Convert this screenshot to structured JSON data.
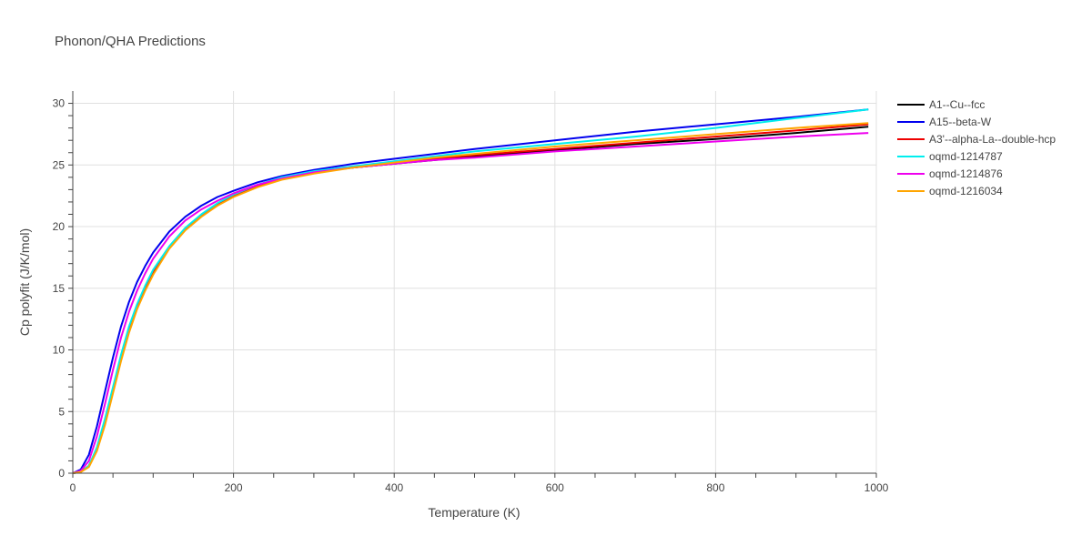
{
  "chart_data": {
    "type": "line",
    "title": "Phonon/QHA Predictions",
    "xlabel": "Temperature (K)",
    "ylabel": "Cp polyfit (J/K/mol)",
    "xlim": [
      0,
      1000
    ],
    "ylim": [
      0,
      31
    ],
    "x_ticks": [
      0,
      200,
      400,
      600,
      800,
      1000
    ],
    "y_ticks": [
      0,
      5,
      10,
      15,
      20,
      25,
      30
    ],
    "grid": true,
    "legend_position": "right",
    "x": [
      0,
      10,
      20,
      30,
      40,
      50,
      60,
      70,
      80,
      90,
      100,
      120,
      140,
      160,
      180,
      200,
      230,
      260,
      300,
      350,
      400,
      450,
      500,
      600,
      700,
      800,
      900,
      990
    ],
    "series": [
      {
        "name": "A1--Cu--fcc",
        "color": "#000000",
        "values": [
          0,
          0.1,
          0.6,
          2.0,
          4.2,
          6.8,
          9.4,
          11.7,
          13.5,
          15.0,
          16.3,
          18.3,
          19.8,
          20.9,
          21.8,
          22.5,
          23.3,
          23.9,
          24.4,
          24.8,
          25.1,
          25.4,
          25.7,
          26.2,
          26.7,
          27.1,
          27.6,
          28.1
        ]
      },
      {
        "name": "A15--beta-W",
        "color": "#0000ee",
        "values": [
          0,
          0.3,
          1.5,
          3.8,
          6.6,
          9.4,
          11.9,
          13.9,
          15.5,
          16.8,
          17.9,
          19.6,
          20.8,
          21.7,
          22.4,
          22.9,
          23.6,
          24.1,
          24.6,
          25.1,
          25.5,
          25.9,
          26.3,
          27.0,
          27.7,
          28.3,
          28.9,
          29.5
        ]
      },
      {
        "name": "A3'--alpha-La--double-hcp",
        "color": "#ee0000",
        "values": [
          0,
          0.1,
          0.6,
          2.0,
          4.2,
          6.8,
          9.4,
          11.7,
          13.5,
          15.0,
          16.3,
          18.3,
          19.8,
          20.9,
          21.8,
          22.5,
          23.3,
          23.9,
          24.4,
          24.8,
          25.1,
          25.5,
          25.8,
          26.3,
          26.8,
          27.3,
          27.8,
          28.3
        ]
      },
      {
        "name": "oqmd-1214787",
        "color": "#00eeee",
        "values": [
          0,
          0.1,
          0.6,
          2.1,
          4.4,
          7.0,
          9.6,
          11.9,
          13.7,
          15.2,
          16.5,
          18.4,
          19.9,
          21.0,
          21.9,
          22.6,
          23.4,
          24.0,
          24.5,
          24.9,
          25.3,
          25.7,
          26.1,
          26.7,
          27.3,
          28.0,
          28.8,
          29.5
        ]
      },
      {
        "name": "oqmd-1214876",
        "color": "#ee00ee",
        "values": [
          0,
          0.2,
          1.0,
          3.0,
          5.6,
          8.4,
          11.0,
          13.1,
          14.8,
          16.2,
          17.4,
          19.2,
          20.5,
          21.4,
          22.1,
          22.7,
          23.4,
          23.9,
          24.4,
          24.8,
          25.1,
          25.4,
          25.6,
          26.1,
          26.5,
          26.9,
          27.3,
          27.6
        ]
      },
      {
        "name": "oqmd-1216034",
        "color": "#ffa500",
        "values": [
          0,
          0.1,
          0.5,
          1.8,
          3.9,
          6.5,
          9.1,
          11.4,
          13.3,
          14.8,
          16.1,
          18.2,
          19.7,
          20.8,
          21.7,
          22.4,
          23.2,
          23.8,
          24.3,
          24.8,
          25.2,
          25.6,
          25.9,
          26.5,
          27.0,
          27.5,
          28.0,
          28.4
        ]
      }
    ]
  }
}
